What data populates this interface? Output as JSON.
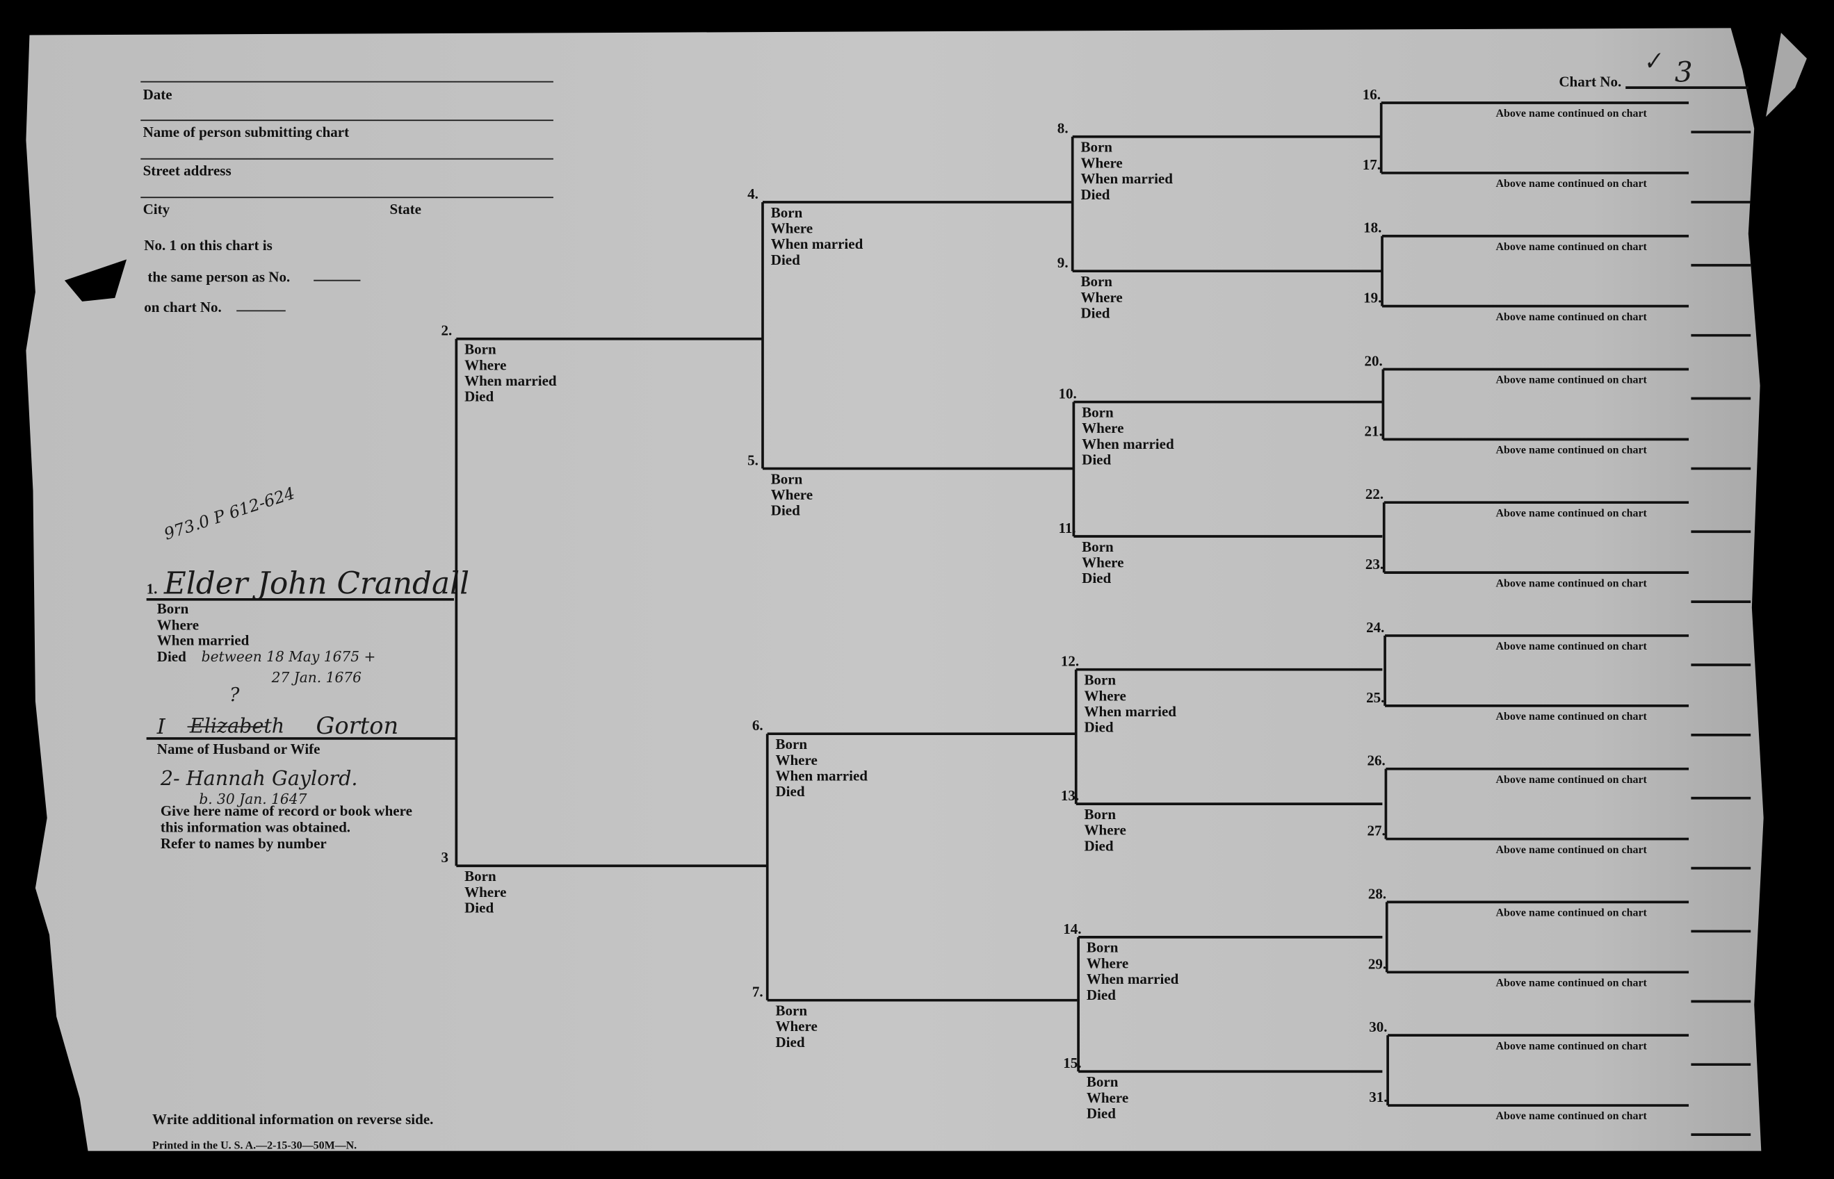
{
  "form": {
    "date_label": "Date",
    "submitter_label": "Name of person submitting chart",
    "street_label": "Street address",
    "city_label": "City",
    "state_label": "State",
    "same_person_line1": "No. 1 on this chart is",
    "same_person_line2": "the same person as No.",
    "on_chart_label": "on chart No."
  },
  "chart_no": {
    "label": "Chart No.",
    "value": "3",
    "check_mark": "✓"
  },
  "labels": {
    "born": "Born",
    "where": "Where",
    "when_married": "When married",
    "died": "Died",
    "above_continued": "Above name continued on chart"
  },
  "call_number": "973.0 P 612-624",
  "person1": {
    "number": "1.",
    "name": "Elder John Crandall",
    "died_line1": "between 18 May 1675 +",
    "died_line2": "27 Jan. 1676"
  },
  "spouse": {
    "prefix": "I",
    "struck_name": "Elizabeth",
    "question": "?",
    "surname": "Gorton",
    "label": "Name of Husband or Wife",
    "second": "2- Hannah Gaylord.",
    "second_born": "b. 30 Jan. 1647"
  },
  "source_instructions": [
    "Give here name of record or book where",
    "this information was obtained.",
    "Refer to names by number"
  ],
  "ancestor_numbers": [
    "2.",
    "3",
    "4.",
    "5.",
    "6.",
    "7.",
    "8.",
    "9.",
    "10.",
    "11.",
    "12.",
    "13.",
    "14.",
    "15.",
    "16.",
    "17.",
    "18.",
    "19.",
    "20.",
    "21.",
    "22.",
    "23.",
    "24.",
    "25.",
    "26.",
    "27.",
    "28.",
    "29.",
    "30.",
    "31."
  ],
  "footer": {
    "note": "Write additional information on reverse side.",
    "printed": "Printed in the U. S. A.—2-15-30—50M—N."
  },
  "colors": {
    "paper": "#c4c4c4",
    "ink": "#111111",
    "background": "#000000"
  }
}
